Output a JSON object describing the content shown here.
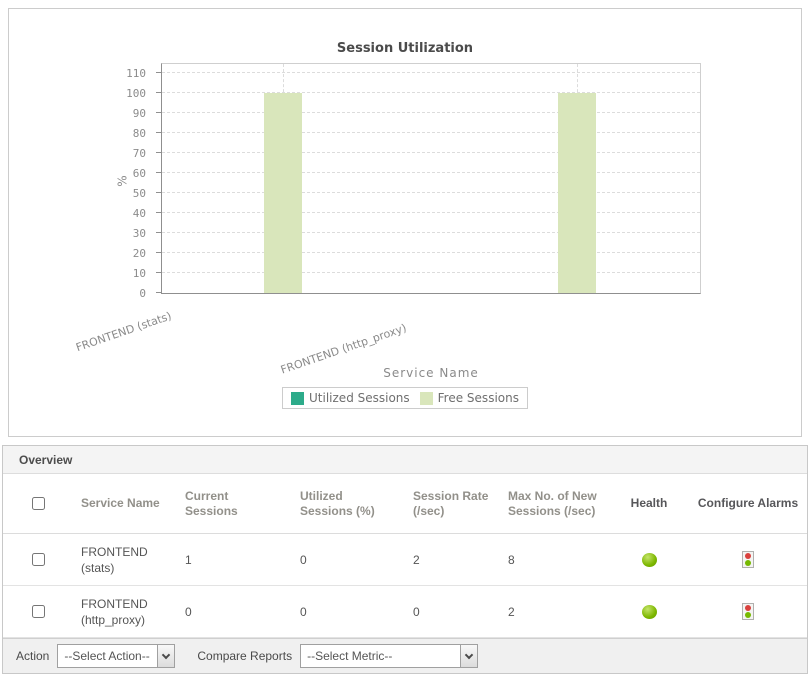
{
  "chart": {
    "title": "Session Utilization",
    "y_axis_title": "%",
    "x_axis_title": "Service Name"
  },
  "chart_data": {
    "type": "bar",
    "stacked": true,
    "title": "Session Utilization",
    "xlabel": "Service Name",
    "ylabel": "%",
    "categories": [
      "FRONTEND (stats)",
      "FRONTEND (http_proxy)"
    ],
    "series": [
      {
        "name": "Utilized Sessions",
        "color": "#2dab8a",
        "values": [
          0,
          0
        ]
      },
      {
        "name": "Free Sessions",
        "color": "#d9e6bb",
        "values": [
          100,
          100
        ]
      }
    ],
    "ylim": [
      0,
      110
    ],
    "y_ticks": [
      0,
      10,
      20,
      30,
      40,
      50,
      60,
      70,
      80,
      90,
      100,
      110
    ],
    "grid": true,
    "legend_position": "bottom"
  },
  "overview": {
    "title": "Overview",
    "columns": [
      "Service Name",
      "Current Sessions",
      "Utilized Sessions (%)",
      "Session Rate (/sec)",
      "Max No. of New Sessions (/sec)",
      "Health",
      "Configure Alarms"
    ],
    "rows": [
      {
        "service": "FRONTEND (stats)",
        "current_sessions": "1",
        "utilized_sessions_pct": "0",
        "session_rate": "2",
        "max_new_sessions": "8",
        "health_status": "up"
      },
      {
        "service": "FRONTEND (http_proxy)",
        "current_sessions": "0",
        "utilized_sessions_pct": "0",
        "session_rate": "0",
        "max_new_sessions": "2",
        "health_status": "up"
      }
    ]
  },
  "action_bar": {
    "action_label": "Action",
    "action_selected": "--Select Action--",
    "compare_label": "Compare Reports",
    "compare_selected": "--Select Metric--"
  },
  "colors": {
    "health_up": "#7db700",
    "alarm_red": "#d9413d",
    "alarm_green": "#76b900",
    "bar_free": "#d9e6bb",
    "bar_utilized": "#2dab8a"
  }
}
